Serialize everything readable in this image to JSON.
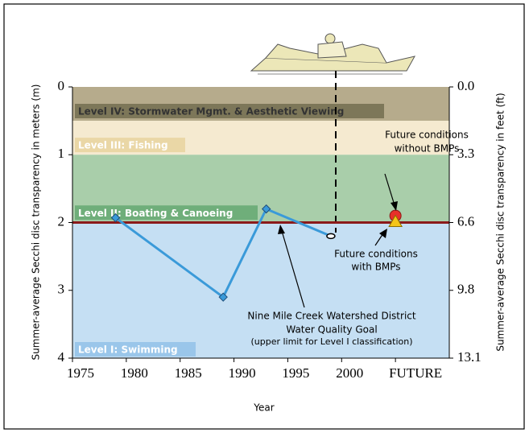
{
  "chart_data": {
    "type": "line",
    "x_label": "Year",
    "y_label": "Summer-average Secchi disc transparency in meters (m)",
    "y2_label": "Summer-average Secchi disc transparency in feet (ft)",
    "xlim": [
      1975,
      2010
    ],
    "xticks": [
      1975,
      1980,
      1985,
      1990,
      1995,
      2000,
      {
        "value": 2005,
        "label": "FUTURE"
      }
    ],
    "ylim": [
      0,
      4
    ],
    "yticks": [
      0,
      1,
      2,
      3,
      4
    ],
    "y2lim": [
      0,
      13.12
    ],
    "y2ticks": [
      {
        "value": 0,
        "label": "0.0"
      },
      {
        "value": 3.28,
        "label": "3.3"
      },
      {
        "value": 6.56,
        "label": "6.6"
      },
      {
        "value": 9.84,
        "label": "9.8"
      },
      {
        "value": 13.12,
        "label": "13.1"
      }
    ],
    "bands": [
      {
        "label": "Level IV: Stormwater Mgmt. & Aesthetic Viewing",
        "from": 0,
        "to": 0.5,
        "color": "#b6ab8c",
        "label_color": "#7d7759"
      },
      {
        "label": "Level III: Fishing",
        "from": 0.5,
        "to": 1,
        "color": "#f5ead0",
        "label_color": "#ead7a6"
      },
      {
        "label": "Level II: Boating & Canoeing",
        "from": 1,
        "to": 2,
        "color": "#a9ceaa",
        "label_color": "#6fae7a"
      },
      {
        "label": "Level I: Swimming",
        "from": 2,
        "to": 4,
        "color": "#c5dff3",
        "label_color": "#9ac6ea"
      }
    ],
    "goal": {
      "value": 2,
      "color": "#8b1a1a",
      "label": "Nine Mile Creek Watershed District",
      "label2": "Water Quality Goal",
      "note": "(upper limit for Level I classification)"
    },
    "series": [
      {
        "x": [
          1979,
          1989,
          1993,
          1999
        ],
        "values": [
          1.93,
          3.1,
          1.8,
          2.2
        ],
        "color": "#3a9ad9"
      }
    ],
    "future": [
      {
        "label": "Future conditions",
        "label2": "without BMPs",
        "x": 2005,
        "value": 1.9,
        "color": "#e8302a",
        "marker": "circle"
      },
      {
        "label": "Future conditions",
        "label2": "with BMPs",
        "x": 2005,
        "value": 2.0,
        "color": "#f5c518",
        "marker": "triangle"
      }
    ]
  }
}
